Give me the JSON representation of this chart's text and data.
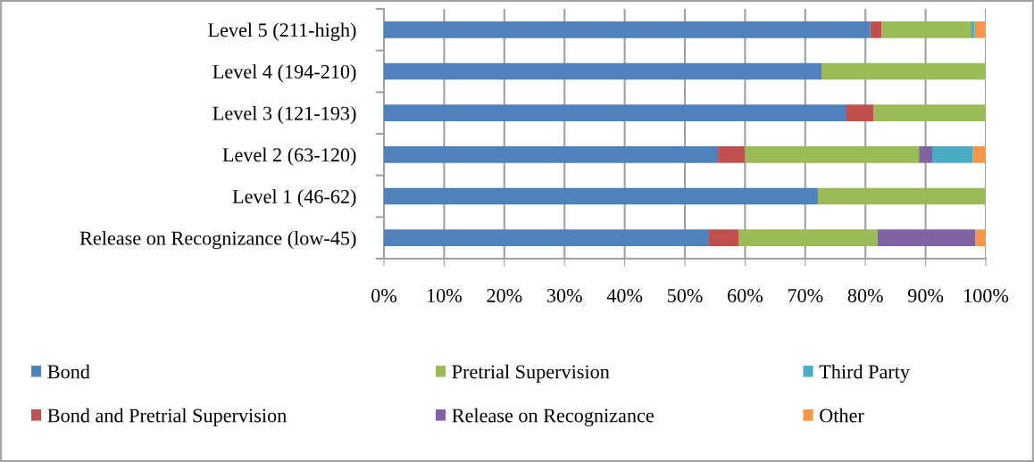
{
  "chart_data": {
    "type": "bar",
    "orientation": "horizontal",
    "stacked": true,
    "categories": [
      "Level 5 (211-high)",
      "Level 4 (194-210)",
      "Level 3 (121-193)",
      "Level 2 (63-120)",
      "Level 1 (46-62)",
      "Release on Recognizance (low-45)"
    ],
    "series": [
      {
        "name": "Bond",
        "color": "#4f81bd",
        "values": [
          80.8,
          72.7,
          76.7,
          55.5,
          72.1,
          54.0
        ]
      },
      {
        "name": "Bond and Pretrial Supervision",
        "color": "#c0504d",
        "values": [
          1.9,
          0,
          4.7,
          4.5,
          0,
          4.9
        ]
      },
      {
        "name": "Pretrial Supervision",
        "color": "#9bbb59",
        "values": [
          14.8,
          27.3,
          18.6,
          28.9,
          27.9,
          23.1
        ]
      },
      {
        "name": "Release on Recognizance",
        "color": "#8064a2",
        "values": [
          0,
          0,
          0,
          2.2,
          0,
          16.3
        ]
      },
      {
        "name": "Third Party",
        "color": "#4bacc6",
        "values": [
          0.6,
          0,
          0,
          6.7,
          0,
          0
        ]
      },
      {
        "name": "Other",
        "color": "#f79646",
        "values": [
          1.9,
          0,
          0,
          2.2,
          0,
          1.7
        ]
      }
    ],
    "xlim": [
      0,
      100
    ],
    "xticks": [
      {
        "value": 0,
        "label": "0%"
      },
      {
        "value": 10,
        "label": "10%"
      },
      {
        "value": 20,
        "label": "20%"
      },
      {
        "value": 30,
        "label": "30%"
      },
      {
        "value": 40,
        "label": "40%"
      },
      {
        "value": 50,
        "label": "50%"
      },
      {
        "value": 60,
        "label": "60%"
      },
      {
        "value": 70,
        "label": "70%"
      },
      {
        "value": 80,
        "label": "80%"
      },
      {
        "value": 90,
        "label": "90%"
      },
      {
        "value": 100,
        "label": "100%"
      }
    ],
    "grid": "x",
    "legend": "bottom"
  }
}
